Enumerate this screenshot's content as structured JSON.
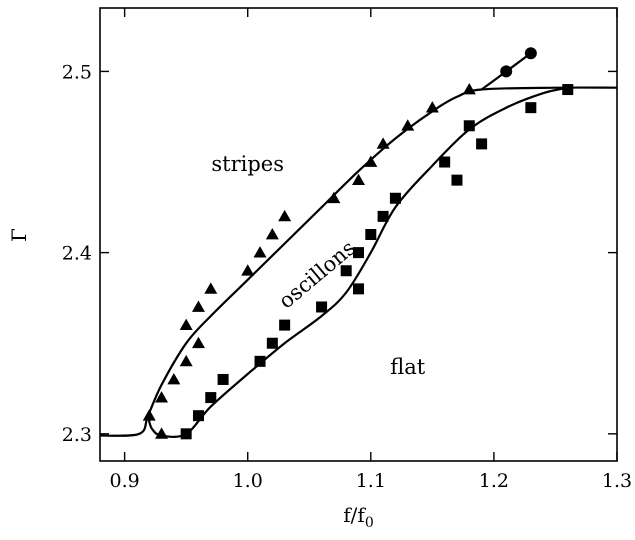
{
  "chart_data": {
    "type": "scatter",
    "title": "",
    "xlabel": "f/f",
    "xlabel_sub": "0",
    "ylabel": "Γ",
    "xlim": [
      0.88,
      1.3
    ],
    "ylim": [
      2.285,
      2.535
    ],
    "grid": false,
    "legend": "none",
    "x_ticks": [
      {
        "value": 0.9,
        "label": "0.9"
      },
      {
        "value": 1.0,
        "label": "1.0"
      },
      {
        "value": 1.1,
        "label": "1.1"
      },
      {
        "value": 1.2,
        "label": "1.2"
      },
      {
        "value": 1.3,
        "label": "1.3"
      }
    ],
    "y_ticks": [
      {
        "value": 2.3,
        "label": "2.3"
      },
      {
        "value": 2.4,
        "label": "2.4"
      },
      {
        "value": 2.5,
        "label": "2.5"
      }
    ],
    "series": [
      {
        "marker": "triangle",
        "points": [
          [
            0.92,
            2.31
          ],
          [
            0.93,
            2.3
          ],
          [
            0.93,
            2.32
          ],
          [
            0.94,
            2.33
          ],
          [
            0.95,
            2.34
          ],
          [
            0.95,
            2.36
          ],
          [
            0.96,
            2.35
          ],
          [
            0.96,
            2.37
          ],
          [
            0.97,
            2.38
          ],
          [
            1.0,
            2.39
          ],
          [
            1.01,
            2.4
          ],
          [
            1.02,
            2.41
          ],
          [
            1.03,
            2.42
          ],
          [
            1.07,
            2.43
          ],
          [
            1.09,
            2.44
          ],
          [
            1.1,
            2.45
          ],
          [
            1.11,
            2.46
          ],
          [
            1.13,
            2.47
          ],
          [
            1.15,
            2.48
          ],
          [
            1.18,
            2.49
          ]
        ]
      },
      {
        "marker": "square",
        "points": [
          [
            0.95,
            2.3
          ],
          [
            0.96,
            2.31
          ],
          [
            0.97,
            2.32
          ],
          [
            0.98,
            2.33
          ],
          [
            1.01,
            2.34
          ],
          [
            1.02,
            2.35
          ],
          [
            1.03,
            2.36
          ],
          [
            1.06,
            2.37
          ],
          [
            1.09,
            2.38
          ],
          [
            1.08,
            2.39
          ],
          [
            1.09,
            2.4
          ],
          [
            1.1,
            2.41
          ],
          [
            1.11,
            2.42
          ],
          [
            1.12,
            2.43
          ],
          [
            1.16,
            2.45
          ],
          [
            1.17,
            2.44
          ],
          [
            1.18,
            2.47
          ],
          [
            1.19,
            2.46
          ],
          [
            1.23,
            2.48
          ],
          [
            1.26,
            2.49
          ]
        ]
      },
      {
        "marker": "circle",
        "points": [
          [
            1.21,
            2.5
          ],
          [
            1.23,
            2.51
          ]
        ]
      }
    ],
    "curves": [
      {
        "name": "upper-boundary-curve",
        "points": [
          [
            0.88,
            2.299
          ],
          [
            0.912,
            2.3
          ],
          [
            0.919,
            2.31
          ],
          [
            0.93,
            2.327
          ],
          [
            0.95,
            2.35
          ],
          [
            0.97,
            2.365
          ],
          [
            1.0,
            2.385
          ],
          [
            1.03,
            2.405
          ],
          [
            1.06,
            2.425
          ],
          [
            1.09,
            2.445
          ],
          [
            1.12,
            2.463
          ],
          [
            1.15,
            2.478
          ],
          [
            1.17,
            2.486
          ],
          [
            1.19,
            2.49
          ],
          [
            1.25,
            2.491
          ],
          [
            1.3,
            2.491
          ]
        ]
      },
      {
        "name": "lower-boundary-curve",
        "points": [
          [
            0.919,
            2.31
          ],
          [
            0.922,
            2.303
          ],
          [
            0.93,
            2.299
          ],
          [
            0.95,
            2.3
          ],
          [
            0.97,
            2.315
          ],
          [
            1.0,
            2.333
          ],
          [
            1.03,
            2.35
          ],
          [
            1.06,
            2.365
          ],
          [
            1.08,
            2.378
          ],
          [
            1.1,
            2.4
          ],
          [
            1.12,
            2.425
          ],
          [
            1.15,
            2.448
          ],
          [
            1.18,
            2.468
          ],
          [
            1.21,
            2.48
          ],
          [
            1.24,
            2.488
          ],
          [
            1.26,
            2.491
          ]
        ]
      },
      {
        "name": "circle-branch-curve",
        "points": [
          [
            1.19,
            2.49
          ],
          [
            1.21,
            2.5
          ],
          [
            1.23,
            2.51
          ]
        ]
      }
    ],
    "annotations": [
      {
        "name": "label-stripes",
        "text": "stripes",
        "x": 1.0,
        "y": 2.445,
        "rotate": 0
      },
      {
        "name": "label-oscillons",
        "text": "oscillons",
        "x": 1.06,
        "y": 2.385,
        "rotate": -40
      },
      {
        "name": "label-flat",
        "text": "flat",
        "x": 1.13,
        "y": 2.333,
        "rotate": 0
      }
    ]
  }
}
